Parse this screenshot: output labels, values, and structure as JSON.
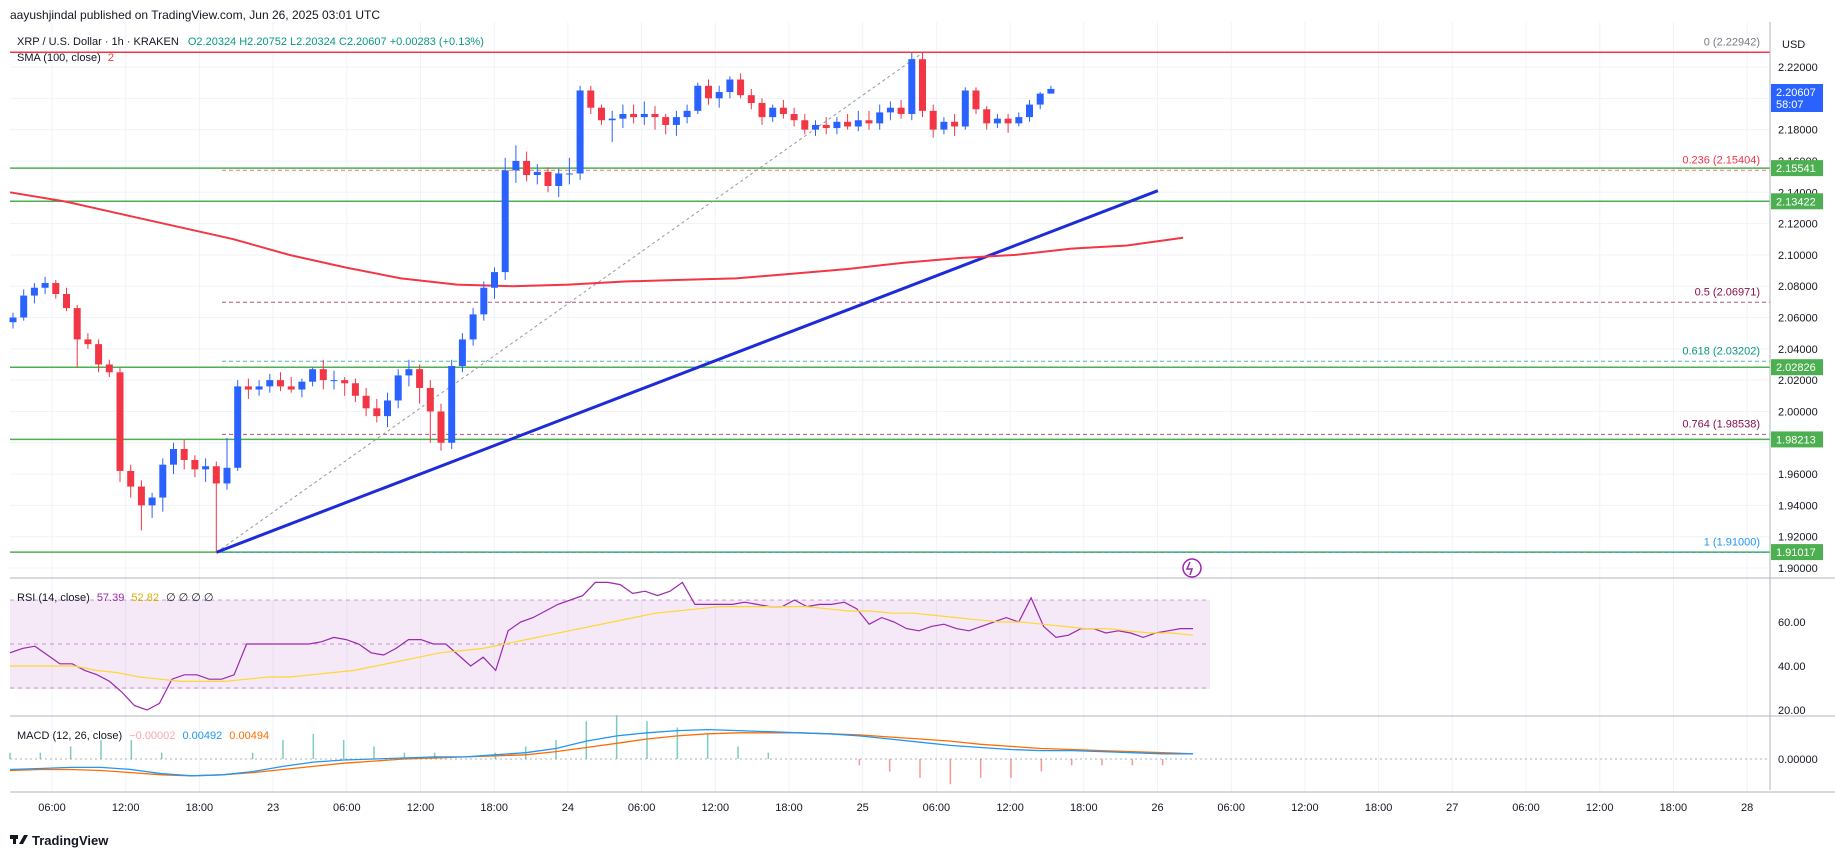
{
  "header": {
    "publisher": "aayushjindal published on TradingView.com, Jun 26, 2025 03:01 UTC",
    "symbol": "XRP / U.S. Dollar · 1h · KRAKEN",
    "ohlc": "O2.20324 H2.20752 L2.20324 C2.20607 +0.00283 (+0.13%)",
    "sma_label": "SMA (100, close)",
    "sma_value": "2"
  },
  "price_axis": {
    "currency": "USD",
    "ticks": [
      "2.22000",
      "2.20000",
      "2.18000",
      "2.16000",
      "2.14000",
      "2.12000",
      "2.10000",
      "2.08000",
      "2.06000",
      "2.04000",
      "2.02000",
      "2.00000",
      "1.98000",
      "1.96000",
      "1.94000",
      "1.92000",
      "1.90000"
    ],
    "last_price": "2.20607",
    "countdown": "58:07",
    "level_tags": [
      "2.15541",
      "2.13422",
      "2.02826",
      "1.98213",
      "1.91017"
    ]
  },
  "fib_labels": [
    "0 (2.22942)",
    "0.236 (2.15404)",
    "0.5 (2.06971)",
    "0.618 (2.03202)",
    "0.764 (1.98538)",
    "1 (1.91000)"
  ],
  "rsi": {
    "label": "RSI (14, close)",
    "value": "57.39",
    "ma_value": "52.82",
    "extras": "∅ ∅ ∅ ∅",
    "ticks": [
      "60.00",
      "40.00",
      "20.00"
    ]
  },
  "macd": {
    "label": "MACD (12, 26, close)",
    "hist": "−0.00002",
    "macd": "0.00492",
    "signal": "0.00494",
    "ticks": [
      "0.00000"
    ]
  },
  "time_axis": [
    "06:00",
    "12:00",
    "18:00",
    "23",
    "06:00",
    "12:00",
    "18:00",
    "24",
    "06:00",
    "12:00",
    "18:00",
    "25",
    "06:00",
    "12:00",
    "18:00",
    "26",
    "06:00",
    "12:00",
    "18:00",
    "27",
    "06:00",
    "12:00",
    "18:00",
    "28"
  ],
  "footer": {
    "brand": "TradingView"
  },
  "colors": {
    "up": "#2962ff",
    "down": "#f23645",
    "level": "#4caf50",
    "sma": "#f23645",
    "trend": "#1e2bd8",
    "rsi": "#9c27b0",
    "rsi_ma": "#fdd835",
    "macd": "#2196f3",
    "signal": "#ff6d00"
  },
  "chart_data": {
    "type": "candlestick",
    "title": "XRP / U.S. Dollar · 1h · KRAKEN",
    "xlabel": "",
    "ylabel": "USD",
    "ylim": [
      1.89,
      2.238
    ],
    "grid": true,
    "candles": [
      [
        2.057,
        2.063,
        2.053,
        2.06
      ],
      [
        2.06,
        2.078,
        2.058,
        2.074
      ],
      [
        2.074,
        2.082,
        2.069,
        2.079
      ],
      [
        2.079,
        2.086,
        2.075,
        2.082
      ],
      [
        2.082,
        2.084,
        2.072,
        2.075
      ],
      [
        2.075,
        2.079,
        2.064,
        2.066
      ],
      [
        2.066,
        2.068,
        2.028,
        2.046
      ],
      [
        2.046,
        2.05,
        2.04,
        2.043
      ],
      [
        2.043,
        2.046,
        2.025,
        2.03
      ],
      [
        2.03,
        2.033,
        2.022,
        2.025
      ],
      [
        2.025,
        2.028,
        1.955,
        1.962
      ],
      [
        1.962,
        1.966,
        1.945,
        1.952
      ],
      [
        1.952,
        1.956,
        1.924,
        1.94
      ],
      [
        1.94,
        1.948,
        1.932,
        1.945
      ],
      [
        1.945,
        1.97,
        1.936,
        1.966
      ],
      [
        1.966,
        1.98,
        1.96,
        1.976
      ],
      [
        1.976,
        1.982,
        1.963,
        1.969
      ],
      [
        1.969,
        1.972,
        1.958,
        1.963
      ],
      [
        1.963,
        1.97,
        1.955,
        1.965
      ],
      [
        1.965,
        1.968,
        1.91,
        1.954
      ],
      [
        1.954,
        1.983,
        1.95,
        1.964
      ],
      [
        1.964,
        2.02,
        1.962,
        2.016
      ],
      [
        2.016,
        2.021,
        2.008,
        2.014
      ],
      [
        2.014,
        2.02,
        2.01,
        2.016
      ],
      [
        2.016,
        2.024,
        2.012,
        2.02
      ],
      [
        2.02,
        2.025,
        2.013,
        2.016
      ],
      [
        2.016,
        2.022,
        2.012,
        2.014
      ],
      [
        2.014,
        2.021,
        2.009,
        2.019
      ],
      [
        2.019,
        2.028,
        2.016,
        2.027
      ],
      [
        2.027,
        2.033,
        2.014,
        2.02
      ],
      [
        2.02,
        2.026,
        2.014,
        2.02
      ],
      [
        2.02,
        2.022,
        2.01,
        2.018
      ],
      [
        2.018,
        2.021,
        2.006,
        2.01
      ],
      [
        2.01,
        2.015,
        1.997,
        2.002
      ],
      [
        2.002,
        2.008,
        1.993,
        1.997
      ],
      [
        1.997,
        2.012,
        1.99,
        2.007
      ],
      [
        2.007,
        2.027,
        2.002,
        2.023
      ],
      [
        2.023,
        2.033,
        2.016,
        2.027
      ],
      [
        2.027,
        2.03,
        2.005,
        2.015
      ],
      [
        2.015,
        2.02,
        1.98,
        2.0
      ],
      [
        2.0,
        2.005,
        1.975,
        1.98
      ],
      [
        1.98,
        2.033,
        1.976,
        2.029
      ],
      [
        2.029,
        2.05,
        2.025,
        2.046
      ],
      [
        2.046,
        2.066,
        2.042,
        2.062
      ],
      [
        2.062,
        2.083,
        2.058,
        2.079
      ],
      [
        2.079,
        2.092,
        2.072,
        2.089
      ],
      [
        2.089,
        2.162,
        2.084,
        2.154
      ],
      [
        2.154,
        2.17,
        2.146,
        2.16
      ],
      [
        2.16,
        2.166,
        2.147,
        2.151
      ],
      [
        2.151,
        2.158,
        2.145,
        2.153
      ],
      [
        2.153,
        2.156,
        2.14,
        2.144
      ],
      [
        2.144,
        2.155,
        2.137,
        2.152
      ],
      [
        2.152,
        2.162,
        2.145,
        2.152
      ],
      [
        2.152,
        2.208,
        2.148,
        2.205
      ],
      [
        2.205,
        2.208,
        2.19,
        2.194
      ],
      [
        2.194,
        2.196,
        2.183,
        2.186
      ],
      [
        2.186,
        2.192,
        2.172,
        2.187
      ],
      [
        2.187,
        2.196,
        2.181,
        2.19
      ],
      [
        2.19,
        2.196,
        2.184,
        2.188
      ],
      [
        2.188,
        2.198,
        2.183,
        2.19
      ],
      [
        2.19,
        2.195,
        2.18,
        2.188
      ],
      [
        2.188,
        2.19,
        2.177,
        2.183
      ],
      [
        2.183,
        2.192,
        2.176,
        2.188
      ],
      [
        2.188,
        2.196,
        2.184,
        2.192
      ],
      [
        2.192,
        2.21,
        2.19,
        2.208
      ],
      [
        2.208,
        2.212,
        2.196,
        2.2
      ],
      [
        2.2,
        2.208,
        2.194,
        2.204
      ],
      [
        2.204,
        2.214,
        2.2,
        2.212
      ],
      [
        2.212,
        2.216,
        2.2,
        2.202
      ],
      [
        2.202,
        2.206,
        2.193,
        2.197
      ],
      [
        2.197,
        2.2,
        2.183,
        2.188
      ],
      [
        2.188,
        2.196,
        2.185,
        2.194
      ],
      [
        2.194,
        2.199,
        2.187,
        2.19
      ],
      [
        2.19,
        2.194,
        2.182,
        2.186
      ],
      [
        2.186,
        2.19,
        2.177,
        2.18
      ],
      [
        2.18,
        2.186,
        2.176,
        2.183
      ],
      [
        2.183,
        2.188,
        2.177,
        2.181
      ],
      [
        2.181,
        2.188,
        2.177,
        2.185
      ],
      [
        2.185,
        2.19,
        2.18,
        2.182
      ],
      [
        2.182,
        2.192,
        2.179,
        2.186
      ],
      [
        2.186,
        2.192,
        2.18,
        2.184
      ],
      [
        2.184,
        2.196,
        2.18,
        2.191
      ],
      [
        2.191,
        2.198,
        2.186,
        2.194
      ],
      [
        2.194,
        2.199,
        2.187,
        2.19
      ],
      [
        2.19,
        2.229,
        2.186,
        2.225
      ],
      [
        2.225,
        2.229,
        2.188,
        2.192
      ],
      [
        2.192,
        2.196,
        2.175,
        2.18
      ],
      [
        2.18,
        2.188,
        2.177,
        2.185
      ],
      [
        2.185,
        2.19,
        2.176,
        2.182
      ],
      [
        2.182,
        2.207,
        2.18,
        2.205
      ],
      [
        2.205,
        2.207,
        2.19,
        2.193
      ],
      [
        2.193,
        2.195,
        2.18,
        2.184
      ],
      [
        2.184,
        2.19,
        2.181,
        2.187
      ],
      [
        2.187,
        2.19,
        2.178,
        2.184
      ],
      [
        2.184,
        2.191,
        2.182,
        2.188
      ],
      [
        2.188,
        2.199,
        2.185,
        2.196
      ],
      [
        2.196,
        2.204,
        2.193,
        2.203
      ],
      [
        2.203,
        2.208,
        2.203,
        2.206
      ]
    ],
    "sma_100": [
      2.14,
      2.134,
      2.126,
      2.118,
      2.11,
      2.1,
      2.092,
      2.085,
      2.081,
      2.08,
      2.081,
      2.083,
      2.084,
      2.085,
      2.088,
      2.091,
      2.095,
      2.098,
      2.1,
      2.104,
      2.106,
      2.111
    ],
    "horizontal_levels": [
      2.15541,
      2.13422,
      2.02826,
      1.98213,
      1.91017
    ],
    "resistance_line": 2.22942,
    "fibonacci": [
      {
        "ratio": "0",
        "price": 2.22942
      },
      {
        "ratio": "0.236",
        "price": 2.15404
      },
      {
        "ratio": "0.5",
        "price": 2.06971
      },
      {
        "ratio": "0.618",
        "price": 2.03202
      },
      {
        "ratio": "0.764",
        "price": 1.98538
      },
      {
        "ratio": "1",
        "price": 1.91
      }
    ],
    "trendline": {
      "from": [
        19,
        1.91
      ],
      "to": [
        107,
        2.141
      ]
    },
    "rsi_series": [
      46,
      48,
      49,
      45,
      41,
      41,
      38,
      36,
      33,
      28,
      22,
      20,
      23,
      34,
      36,
      36,
      34,
      34,
      36,
      50,
      50,
      50,
      50,
      50,
      50,
      51,
      53,
      52,
      50,
      46,
      45,
      48,
      52,
      52,
      50,
      50,
      45,
      40,
      44,
      38,
      56,
      60,
      62,
      65,
      68,
      70,
      72,
      78,
      78,
      77,
      73,
      74,
      72,
      74,
      78,
      68,
      68,
      68,
      68,
      69,
      68,
      67,
      67,
      70,
      67,
      68,
      68,
      69,
      66,
      59,
      62,
      60,
      57,
      56,
      58,
      59,
      57,
      56,
      58,
      60,
      62,
      60,
      71,
      58,
      53,
      54,
      57,
      57,
      55,
      56,
      55,
      53,
      55,
      56,
      57,
      57
    ],
    "rsi_ma": [
      40,
      40,
      40,
      40,
      38,
      37,
      35,
      34,
      33,
      33,
      33,
      34,
      35,
      35,
      36,
      37,
      38,
      40,
      42,
      44,
      46,
      47,
      48,
      50,
      52,
      54,
      56,
      58,
      60,
      62,
      64,
      65,
      66,
      67,
      67,
      67,
      67,
      67,
      66,
      65,
      65,
      64,
      64,
      63,
      62,
      61,
      60,
      60,
      59,
      58,
      57,
      57,
      56,
      55,
      55,
      54
    ],
    "macd_line": [
      -0.01,
      -0.009,
      -0.008,
      -0.008,
      -0.01,
      -0.014,
      -0.016,
      -0.015,
      -0.012,
      -0.007,
      -0.003,
      -0.001,
      0.0,
      0.001,
      0.002,
      0.002,
      0.004,
      0.006,
      0.01,
      0.017,
      0.022,
      0.025,
      0.027,
      0.028,
      0.027,
      0.026,
      0.025,
      0.024,
      0.022,
      0.019,
      0.016,
      0.013,
      0.011,
      0.009,
      0.008,
      0.008,
      0.007,
      0.006,
      0.005,
      0.005
    ],
    "signal_line": [
      -0.011,
      -0.01,
      -0.01,
      -0.011,
      -0.013,
      -0.015,
      -0.016,
      -0.015,
      -0.013,
      -0.01,
      -0.007,
      -0.004,
      -0.002,
      0.0,
      0.001,
      0.002,
      0.003,
      0.004,
      0.007,
      0.011,
      0.015,
      0.019,
      0.022,
      0.024,
      0.025,
      0.025,
      0.025,
      0.024,
      0.023,
      0.021,
      0.019,
      0.017,
      0.014,
      0.012,
      0.01,
      0.009,
      0.008,
      0.007,
      0.006,
      0.005
    ]
  }
}
